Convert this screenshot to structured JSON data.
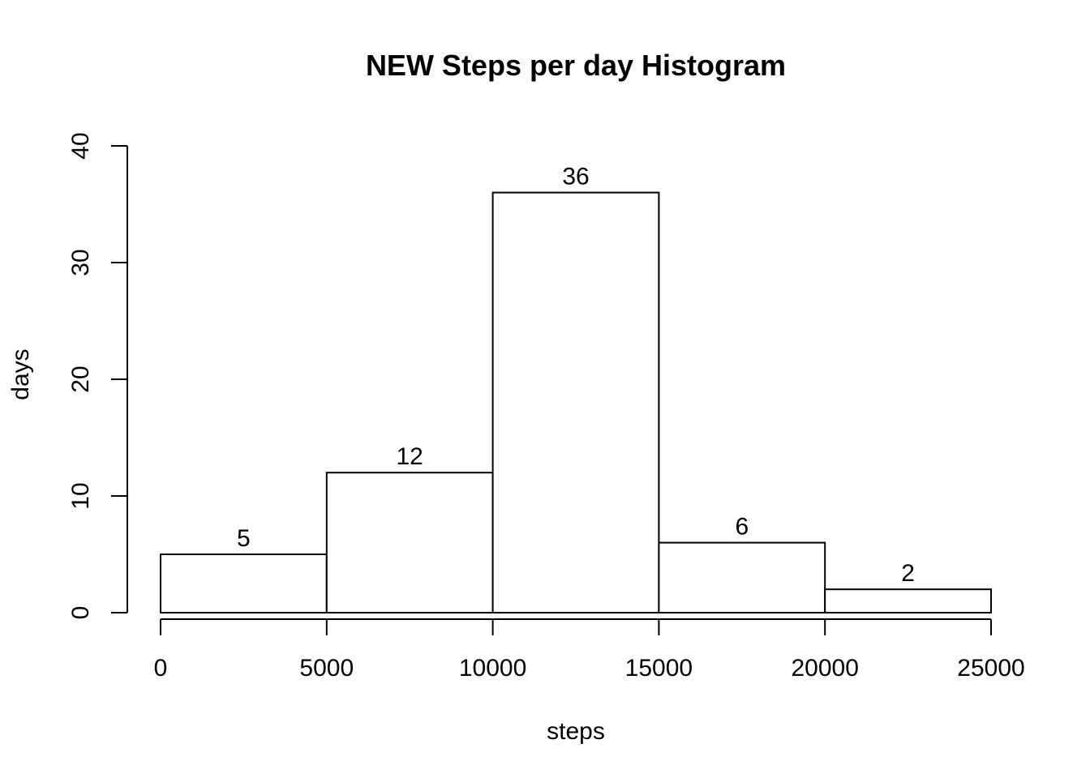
{
  "chart_data": {
    "type": "bar",
    "title": "NEW Steps per day Histogram",
    "xlabel": "steps",
    "ylabel": "days",
    "bins": [
      {
        "from": 0,
        "to": 5000,
        "value": 5
      },
      {
        "from": 5000,
        "to": 10000,
        "value": 12
      },
      {
        "from": 10000,
        "to": 15000,
        "value": 36
      },
      {
        "from": 15000,
        "to": 20000,
        "value": 6
      },
      {
        "from": 20000,
        "to": 25000,
        "value": 2
      }
    ],
    "xlim": [
      0,
      25000
    ],
    "ylim": [
      0,
      40
    ],
    "xticks": [
      0,
      5000,
      10000,
      15000,
      20000,
      25000
    ],
    "yticks": [
      0,
      10,
      20,
      30,
      40
    ],
    "data_labels": true,
    "grid": false,
    "colors": {
      "bar_fill": "#ffffff",
      "bar_stroke": "#000000"
    }
  }
}
